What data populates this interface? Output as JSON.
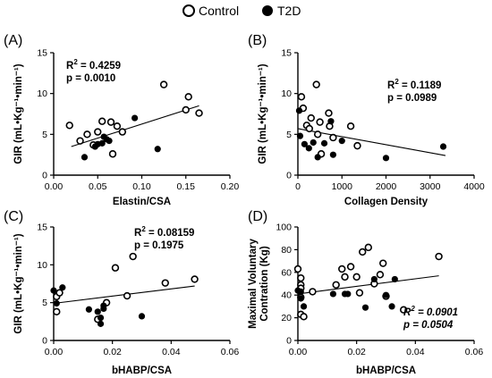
{
  "legend": {
    "items": [
      {
        "label": "Control",
        "marker": "open-circle"
      },
      {
        "label": "T2D",
        "marker": "filled-circle"
      }
    ]
  },
  "chart_data": [
    {
      "panel": "(A)",
      "type": "scatter",
      "xlabel": "Elastin/CSA",
      "ylabel": "GIR (mL•Kg⁻¹•min⁻¹)",
      "xlim": [
        0,
        0.2
      ],
      "ylim": [
        0,
        15
      ],
      "xticks": [
        "0.00",
        "0.05",
        "0.10",
        "0.15",
        "0.20"
      ],
      "yticks": [
        "0",
        "5",
        "10",
        "15"
      ],
      "xtick_values": [
        0,
        0.05,
        0.1,
        0.15,
        0.2
      ],
      "ytick_values": [
        0,
        5,
        10,
        15
      ],
      "stats": [
        "R² = 0.4259",
        "p = 0.0010"
      ],
      "stats_italic": false,
      "stats_pos": "top-left",
      "fit": {
        "x": [
          0.02,
          0.165
        ],
        "y": [
          3.5,
          8.5
        ]
      },
      "series": [
        {
          "name": "Control",
          "points": [
            [
              0.018,
              6.1
            ],
            [
              0.03,
              4.2
            ],
            [
              0.038,
              5.0
            ],
            [
              0.045,
              3.7
            ],
            [
              0.05,
              5.3
            ],
            [
              0.055,
              6.6
            ],
            [
              0.065,
              6.5
            ],
            [
              0.067,
              2.6
            ],
            [
              0.072,
              6.0
            ],
            [
              0.078,
              5.3
            ],
            [
              0.125,
              11.1
            ],
            [
              0.15,
              8.0
            ],
            [
              0.153,
              9.6
            ],
            [
              0.165,
              7.6
            ]
          ]
        },
        {
          "name": "T2D",
          "points": [
            [
              0.035,
              2.2
            ],
            [
              0.047,
              3.5
            ],
            [
              0.05,
              3.8
            ],
            [
              0.055,
              3.9
            ],
            [
              0.057,
              4.7
            ],
            [
              0.06,
              4.4
            ],
            [
              0.063,
              4.2
            ],
            [
              0.092,
              7.0
            ],
            [
              0.118,
              3.2
            ]
          ]
        }
      ]
    },
    {
      "panel": "(B)",
      "type": "scatter",
      "xlabel": "Collagen Density",
      "ylabel": "GIR (mL•Kg⁻¹•min⁻¹)",
      "xlim": [
        0,
        4000
      ],
      "ylim": [
        0,
        15
      ],
      "xticks": [
        "0",
        "1000",
        "2000",
        "3000",
        "4000"
      ],
      "yticks": [
        "0",
        "5",
        "10",
        "15"
      ],
      "xtick_values": [
        0,
        1000,
        2000,
        3000,
        4000
      ],
      "ytick_values": [
        0,
        5,
        10,
        15
      ],
      "stats": [
        "R² = 0.1189",
        "p = 0.0989"
      ],
      "stats_italic": false,
      "stats_pos": "top-right",
      "fit": {
        "x": [
          0,
          3350
        ],
        "y": [
          5.7,
          2.4
        ]
      },
      "series": [
        {
          "name": "Control",
          "points": [
            [
              80,
              9.6
            ],
            [
              120,
              8.2
            ],
            [
              200,
              6.1
            ],
            [
              260,
              5.7
            ],
            [
              300,
              7.0
            ],
            [
              420,
              11.1
            ],
            [
              500,
              6.5
            ],
            [
              450,
              5.0
            ],
            [
              530,
              2.6
            ],
            [
              700,
              7.6
            ],
            [
              720,
              6.0
            ],
            [
              800,
              4.6
            ],
            [
              1200,
              6.0
            ],
            [
              1350,
              3.6
            ]
          ]
        },
        {
          "name": "T2D",
          "points": [
            [
              30,
              7.9
            ],
            [
              50,
              4.8
            ],
            [
              150,
              3.8
            ],
            [
              250,
              3.3
            ],
            [
              350,
              4.0
            ],
            [
              450,
              2.2
            ],
            [
              600,
              3.9
            ],
            [
              750,
              6.6
            ],
            [
              800,
              2.5
            ],
            [
              1000,
              4.2
            ],
            [
              2000,
              2.1
            ],
            [
              3300,
              3.5
            ]
          ]
        }
      ]
    },
    {
      "panel": "(C)",
      "type": "scatter",
      "xlabel": "bHABP/CSA",
      "ylabel": "GIR (mL•Kg⁻¹•min⁻¹)",
      "xlim": [
        0,
        0.06
      ],
      "ylim": [
        0,
        15
      ],
      "xticks": [
        "0.00",
        "0.02",
        "0.04",
        "0.06"
      ],
      "yticks": [
        "0",
        "5",
        "10",
        "15"
      ],
      "xtick_values": [
        0,
        0.02,
        0.04,
        0.06
      ],
      "ytick_values": [
        0,
        5,
        10,
        15
      ],
      "stats": [
        "R² = 0.08159",
        "p = 0.1975"
      ],
      "stats_italic": false,
      "stats_pos": "top-middle",
      "fit": {
        "x": [
          0,
          0.048
        ],
        "y": [
          4.9,
          7.2
        ]
      },
      "series": [
        {
          "name": "Control",
          "points": [
            [
              0.001,
              5.8
            ],
            [
              0.001,
              3.8
            ],
            [
              0.002,
              6.3
            ],
            [
              0.015,
              2.8
            ],
            [
              0.018,
              5.0
            ],
            [
              0.021,
              9.6
            ],
            [
              0.025,
              5.9
            ],
            [
              0.027,
              11.1
            ],
            [
              0.038,
              7.6
            ],
            [
              0.048,
              8.1
            ]
          ]
        },
        {
          "name": "T2D",
          "points": [
            [
              0,
              6.6
            ],
            [
              0.001,
              4.9
            ],
            [
              0.003,
              7.0
            ],
            [
              0.012,
              4.1
            ],
            [
              0.015,
              3.8
            ],
            [
              0.016,
              3.0
            ],
            [
              0.016,
              2.2
            ],
            [
              0.017,
              4.6
            ],
            [
              0.017,
              4.2
            ],
            [
              0.03,
              3.2
            ]
          ]
        }
      ]
    },
    {
      "panel": "(D)",
      "type": "scatter",
      "xlabel": "bHABP/CSA",
      "ylabel": "Maximal  Voluntary Contration (Kg)",
      "xlim": [
        0,
        0.06
      ],
      "ylim": [
        0,
        100
      ],
      "xticks": [
        "0.00",
        "0.02",
        "0.04",
        "0.06"
      ],
      "yticks": [
        "0",
        "20",
        "40",
        "60",
        "80",
        "100"
      ],
      "xtick_values": [
        0,
        0.02,
        0.04,
        0.06
      ],
      "ytick_values": [
        0,
        20,
        40,
        60,
        80,
        100
      ],
      "stats": [
        "R² = 0.0901",
        "p = 0.0504"
      ],
      "stats_italic": true,
      "stats_pos": "bottom-right",
      "fit": {
        "x": [
          0,
          0.048
        ],
        "y": [
          41,
          57
        ]
      },
      "series": [
        {
          "name": "Control",
          "points": [
            [
              0,
              63
            ],
            [
              0.001,
              55
            ],
            [
              0.001,
              49
            ],
            [
              0.001,
              46
            ],
            [
              0.001,
              38
            ],
            [
              0.001,
              23
            ],
            [
              0.002,
              21
            ],
            [
              0.005,
              43
            ],
            [
              0.013,
              49
            ],
            [
              0.015,
              63
            ],
            [
              0.016,
              56
            ],
            [
              0.018,
              65
            ],
            [
              0.02,
              56
            ],
            [
              0.021,
              42
            ],
            [
              0.022,
              78
            ],
            [
              0.024,
              82
            ],
            [
              0.026,
              50
            ],
            [
              0.028,
              58
            ],
            [
              0.029,
              68
            ],
            [
              0.03,
              39
            ],
            [
              0.036,
              27
            ],
            [
              0.048,
              74
            ]
          ]
        },
        {
          "name": "T2D",
          "points": [
            [
              0,
              44
            ],
            [
              0.001,
              43
            ],
            [
              0.001,
              37
            ],
            [
              0.002,
              30
            ],
            [
              0.012,
              41
            ],
            [
              0.016,
              41
            ],
            [
              0.017,
              41
            ],
            [
              0.023,
              29
            ],
            [
              0.026,
              54
            ],
            [
              0.03,
              40
            ],
            [
              0.032,
              30
            ],
            [
              0.033,
              54
            ]
          ]
        }
      ]
    }
  ]
}
